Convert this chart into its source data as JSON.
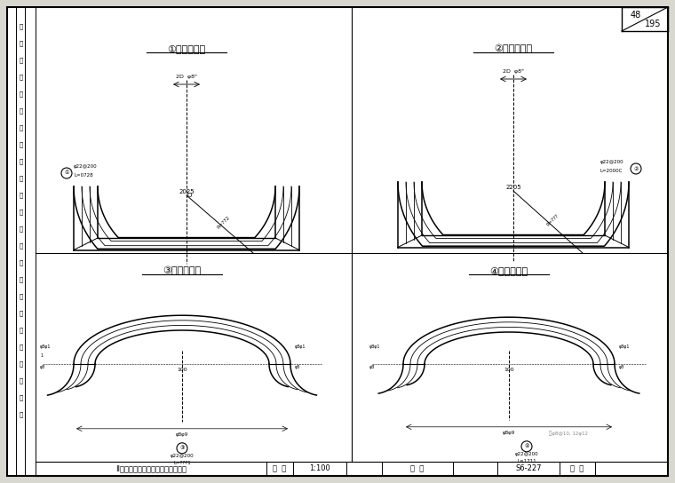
{
  "title": "衡昆国道主干线富宁至广南公路云南某隧道施工图设计_2",
  "bg_color": "#d8d8d0",
  "border_color": "#000000",
  "line_color": "#000000",
  "page_num_top": "48",
  "page_num_bottom": "195",
  "titles": [
    "①钉筋大样图",
    "②钉筋大样图",
    "③钉筋大样图",
    "④钉筋大样图"
  ],
  "bottom_text": "II类围岩衬砂断面钉筋大样图（二）",
  "scale_text": "1:100",
  "drawing_num": "S6-227"
}
